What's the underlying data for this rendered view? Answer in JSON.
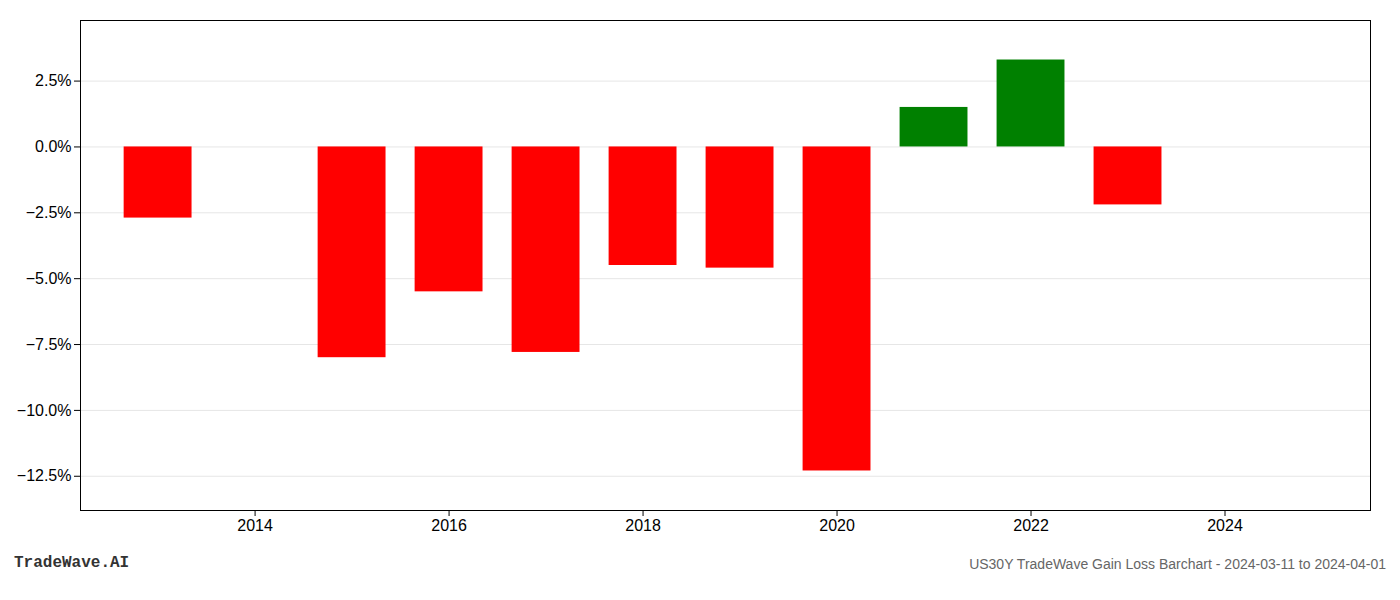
{
  "chart_data": {
    "type": "bar",
    "x": [
      2013,
      2015,
      2016,
      2017,
      2018,
      2019,
      2020,
      2021,
      2022,
      2023
    ],
    "values": [
      -2.7,
      -8.0,
      -5.5,
      -7.8,
      -4.5,
      -4.6,
      -12.3,
      1.5,
      3.3,
      -2.2
    ],
    "colors": [
      "#ff0000",
      "#ff0000",
      "#ff0000",
      "#ff0000",
      "#ff0000",
      "#ff0000",
      "#ff0000",
      "#008000",
      "#008000",
      "#ff0000"
    ],
    "xlim": [
      2012.2,
      2025.5
    ],
    "xticks": [
      2014,
      2016,
      2018,
      2020,
      2022,
      2024
    ],
    "ylim": [
      -13.8,
      4.8
    ],
    "yticks": [
      {
        "value": -12.5,
        "label": "−12.5%"
      },
      {
        "value": -10.0,
        "label": "−10.0%"
      },
      {
        "value": -7.5,
        "label": "−7.5%"
      },
      {
        "value": -5.0,
        "label": "−5.0%"
      },
      {
        "value": -2.5,
        "label": "−2.5%"
      },
      {
        "value": 0.0,
        "label": "0.0%"
      },
      {
        "value": 2.5,
        "label": "2.5%"
      }
    ],
    "grid": true,
    "annotations": [
      "TradeWave.AI",
      "US30Y TradeWave Gain Loss Barchart - 2024-03-11 to 2024-04-01"
    ]
  }
}
